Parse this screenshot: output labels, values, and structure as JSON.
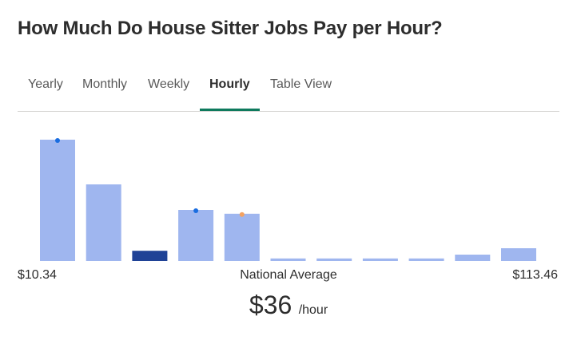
{
  "page": {
    "title": "How Much Do House Sitter Jobs Pay per Hour?"
  },
  "tabs": [
    {
      "label": "Yearly",
      "active": false
    },
    {
      "label": "Monthly",
      "active": false
    },
    {
      "label": "Weekly",
      "active": false
    },
    {
      "label": "Hourly",
      "active": true
    },
    {
      "label": "Table View",
      "active": false
    }
  ],
  "summary": {
    "min_label": "$10.34",
    "max_label": "$113.46",
    "average_caption": "National Average",
    "average_amount": "$36",
    "average_unit": "/hour"
  },
  "colors": {
    "bar": "#9fb6ef",
    "bar_highlight": "#1f4296",
    "marker_blue": "#1a6de0",
    "marker_orange": "#f4a261",
    "tab_underline": "#0e7a5d"
  },
  "chart_data": {
    "type": "bar",
    "x": [
      1,
      2,
      3,
      4,
      5,
      6,
      7,
      8,
      9,
      10,
      11
    ],
    "values": [
      95,
      60,
      8,
      40,
      37,
      2,
      2,
      2,
      2,
      5,
      10
    ],
    "ylim": [
      0,
      100
    ],
    "highlight_index": 2,
    "markers": [
      {
        "bar": 0,
        "color": "blue"
      },
      {
        "bar": 3,
        "color": "blue"
      },
      {
        "bar": 4,
        "color": "orange"
      }
    ],
    "range_min": "$10.34",
    "range_max": "$113.46",
    "grid": false,
    "legend": "none"
  }
}
